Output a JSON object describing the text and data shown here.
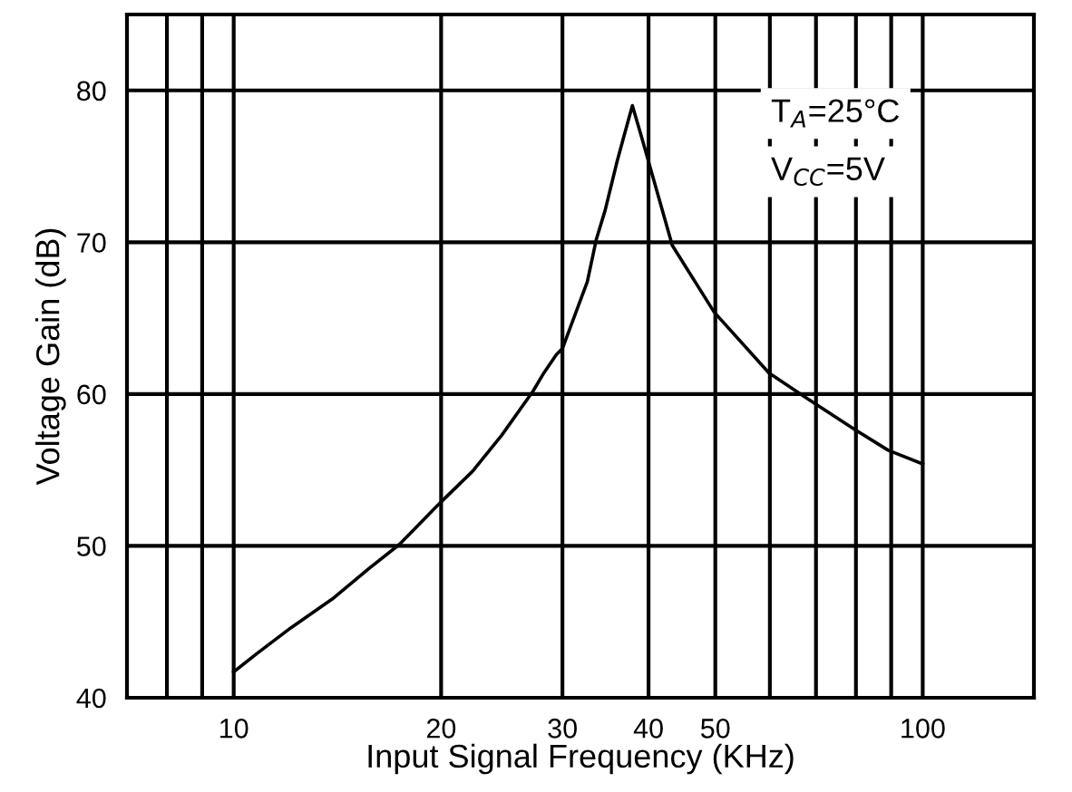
{
  "chart_data": {
    "type": "line",
    "xlabel": "Input Signal Frequency (KHz)",
    "ylabel": "Voltage Gain (dB)",
    "log": "x",
    "grid": true,
    "line_style": "solid",
    "marker": "none",
    "xlim": [
      7,
      145
    ],
    "ylim": [
      40,
      85
    ],
    "xticks": [
      {
        "value": 8,
        "label": null
      },
      {
        "value": 9,
        "label": null
      },
      10,
      20,
      30,
      40,
      50,
      {
        "value": 60,
        "label": null
      },
      {
        "value": 70,
        "label": null
      },
      {
        "value": 80,
        "label": null
      },
      {
        "value": 90,
        "label": null
      },
      100
    ],
    "yticks": [
      40,
      50,
      60,
      70,
      80
    ],
    "annotations": [
      "T$_{A}$=25°C",
      "V$_{CC}$=5V"
    ],
    "series": [
      {
        "color": "#000000",
        "x": [
          10,
          10.8,
          12.1,
          13.9,
          15.7,
          17.4,
          20,
          22.2,
          24.5,
          27.2,
          28.2,
          29.4,
          30,
          32.6,
          33.6,
          34.6,
          36.0,
          36.8,
          37.9,
          39.1,
          43.3,
          49.8,
          59.8,
          67.5,
          79.5,
          89.1,
          100
        ],
        "values": [
          41.7,
          42.9,
          44.6,
          46.5,
          48.5,
          50.1,
          52.9,
          54.9,
          57.3,
          60.2,
          61.4,
          62.6,
          63.0,
          67.4,
          70.2,
          72.1,
          75.3,
          76.9,
          79.0,
          76.9,
          69.8,
          65.4,
          61.4,
          59.8,
          57.7,
          56.3,
          55.4
        ]
      }
    ]
  }
}
